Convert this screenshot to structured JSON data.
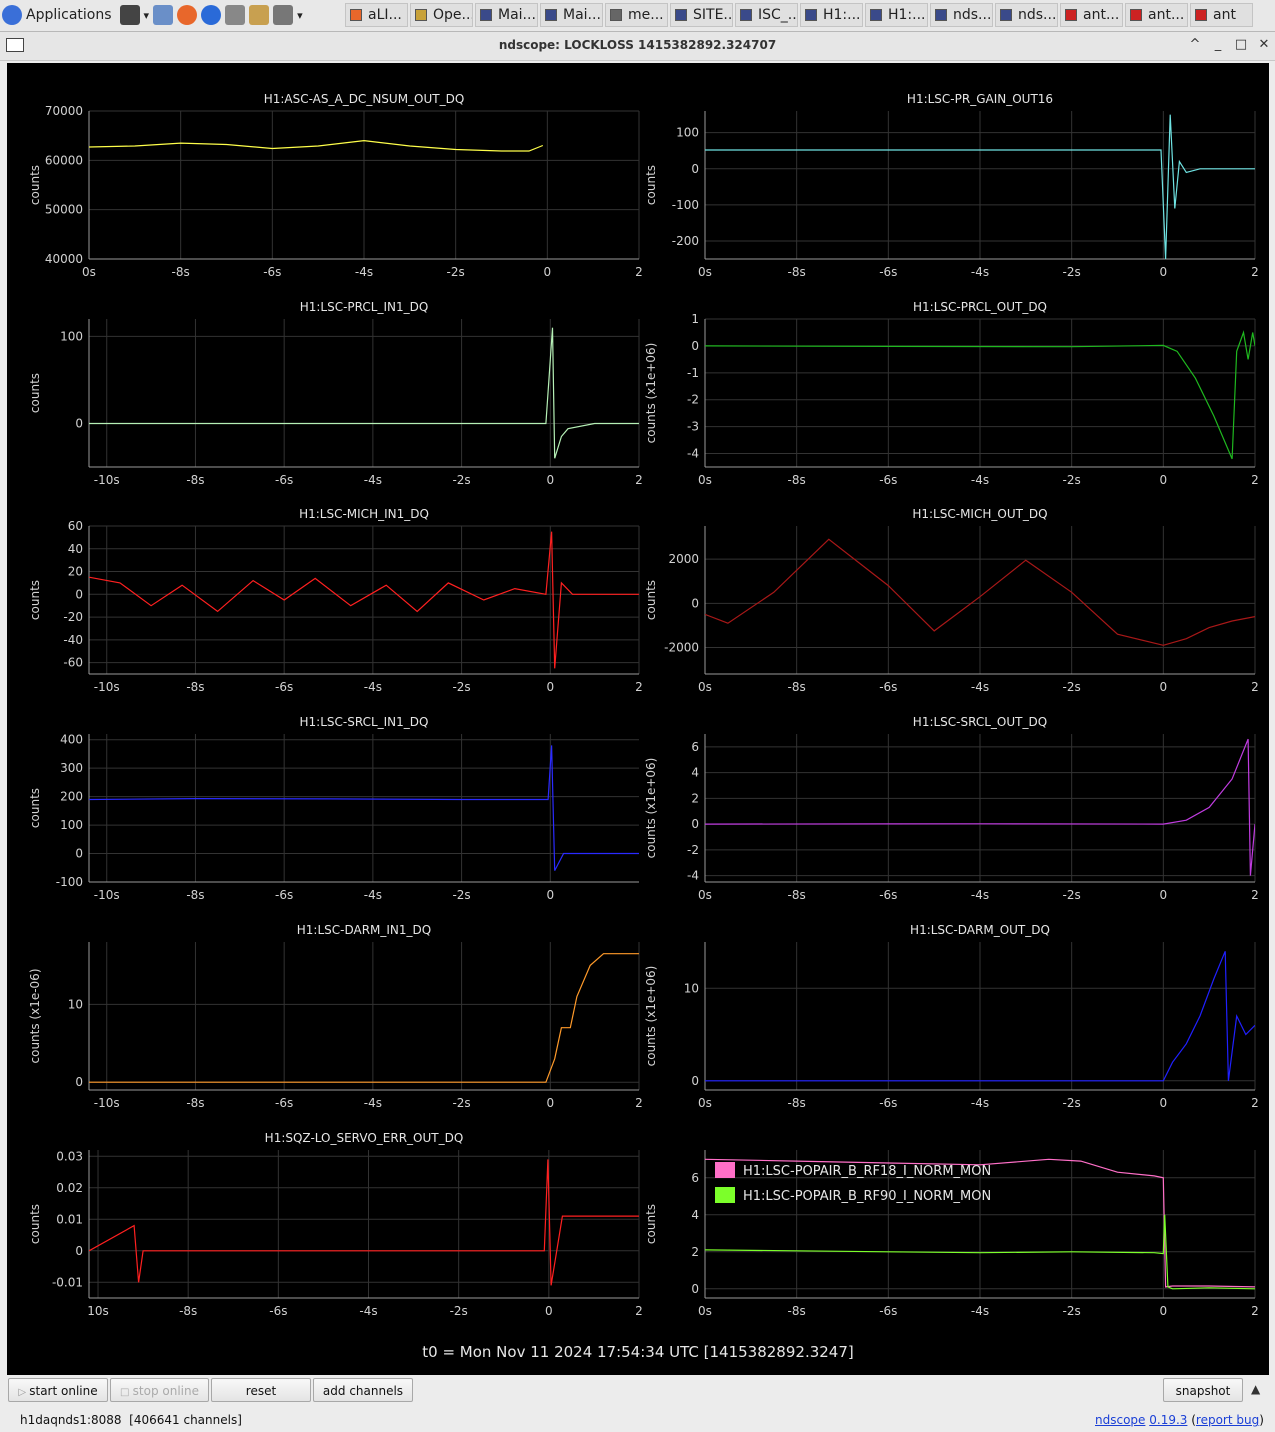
{
  "taskbar": {
    "applications_label": "Applications",
    "tasks": [
      {
        "label": "aLI...",
        "icon": "firefox-icon",
        "color": "#e8672b"
      },
      {
        "label": "Ope...",
        "icon": "notepad-icon",
        "color": "#c8a23a"
      },
      {
        "label": "Mai...",
        "icon": "window-icon",
        "color": "#3a4a8a"
      },
      {
        "label": "Mai...",
        "icon": "window-icon",
        "color": "#3a4a8a"
      },
      {
        "label": "me...",
        "icon": "window-icon",
        "color": "#666666"
      },
      {
        "label": "SITE...",
        "icon": "monitor-icon",
        "color": "#3a4a8a"
      },
      {
        "label": "ISC_...",
        "icon": "monitor-icon",
        "color": "#3a4a8a"
      },
      {
        "label": "H1:...",
        "icon": "monitor-icon",
        "color": "#3a4a8a"
      },
      {
        "label": "H1:...",
        "icon": "monitor-icon",
        "color": "#3a4a8a"
      },
      {
        "label": "nds...",
        "icon": "window-icon",
        "color": "#3a4a8a"
      },
      {
        "label": "nds...",
        "icon": "window-icon",
        "color": "#3a4a8a"
      },
      {
        "label": "ant...",
        "icon": "terminal-icon",
        "color": "#cc2222"
      },
      {
        "label": "ant...",
        "icon": "terminal-icon",
        "color": "#cc2222"
      },
      {
        "label": "ant",
        "icon": "terminal-icon",
        "color": "#cc2222"
      }
    ]
  },
  "window": {
    "title": "ndscope: LOCKLOSS 1415382892.324707",
    "controls": [
      "^",
      "_",
      "□",
      "✕"
    ]
  },
  "t0_label": "t0 = Mon Nov 11 2024 17:54:34 UTC [1415382892.3247]",
  "panels": [
    {
      "title": "H1:ASC-AS_A_DC_NSUM_OUT_DQ",
      "ylabel": "counts",
      "yticks": [
        "70000",
        "60000",
        "50000",
        "40000"
      ],
      "xticks": [
        "0s",
        "-8s",
        "-6s",
        "-4s",
        "-2s",
        "0",
        "2"
      ]
    },
    {
      "title": "H1:LSC-PR_GAIN_OUT16",
      "ylabel": "counts",
      "yticks": [
        "100",
        "0",
        "-100",
        "-200"
      ],
      "xticks": [
        "0s",
        "-8s",
        "-6s",
        "-4s",
        "-2s",
        "0",
        "2"
      ]
    },
    {
      "title": "H1:LSC-PRCL_IN1_DQ",
      "ylabel": "counts",
      "yticks": [
        "100",
        "0"
      ],
      "xticks": [
        "-10s",
        "-8s",
        "-6s",
        "-4s",
        "-2s",
        "0",
        "2"
      ]
    },
    {
      "title": "H1:LSC-PRCL_OUT_DQ",
      "ylabel": "counts (x1e+06)",
      "yticks": [
        "1",
        "0",
        "-1",
        "-2",
        "-3",
        "-4"
      ],
      "xticks": [
        "0s",
        "-8s",
        "-6s",
        "-4s",
        "-2s",
        "0",
        "2"
      ]
    },
    {
      "title": "H1:LSC-MICH_IN1_DQ",
      "ylabel": "counts",
      "yticks": [
        "60",
        "40",
        "20",
        "0",
        "-20",
        "-40",
        "-60"
      ],
      "xticks": [
        "-10s",
        "-8s",
        "-6s",
        "-4s",
        "-2s",
        "0",
        "2"
      ]
    },
    {
      "title": "H1:LSC-MICH_OUT_DQ",
      "ylabel": "counts",
      "yticks": [
        "2000",
        "0",
        "-2000"
      ],
      "xticks": [
        "0s",
        "-8s",
        "-6s",
        "-4s",
        "-2s",
        "0",
        "2"
      ]
    },
    {
      "title": "H1:LSC-SRCL_IN1_DQ",
      "ylabel": "counts",
      "yticks": [
        "400",
        "300",
        "200",
        "100",
        "0",
        "-100"
      ],
      "xticks": [
        "-10s",
        "-8s",
        "-6s",
        "-4s",
        "-2s",
        "0"
      ]
    },
    {
      "title": "H1:LSC-SRCL_OUT_DQ",
      "ylabel": "counts (x1e+06)",
      "yticks": [
        "6",
        "4",
        "2",
        "0",
        "-2",
        "-4"
      ],
      "xticks": [
        "0s",
        "-8s",
        "-6s",
        "-4s",
        "-2s",
        "0",
        "2"
      ]
    },
    {
      "title": "H1:LSC-DARM_IN1_DQ",
      "ylabel": "counts (x1e-06)",
      "yticks": [
        "10",
        "0"
      ],
      "xticks": [
        "-10s",
        "-8s",
        "-6s",
        "-4s",
        "-2s",
        "0",
        "2"
      ]
    },
    {
      "title": "H1:LSC-DARM_OUT_DQ",
      "ylabel": "counts (x1e+06)",
      "yticks": [
        "10",
        "0"
      ],
      "xticks": [
        "0s",
        "-8s",
        "-6s",
        "-4s",
        "-2s",
        "0",
        "2"
      ]
    },
    {
      "title": "H1:SQZ-LO_SERVO_ERR_OUT_DQ",
      "ylabel": "counts",
      "yticks": [
        "0.03",
        "0.02",
        "0.01",
        "0",
        "-0.01"
      ],
      "xticks": [
        "10s",
        "-8s",
        "-6s",
        "-4s",
        "-2s",
        "0",
        "2"
      ]
    },
    {
      "title": "",
      "ylabel": "counts",
      "yticks": [
        "6",
        "4",
        "2",
        "0"
      ],
      "xticks": [
        "0s",
        "-8s",
        "-6s",
        "-4s",
        "-2s",
        "0",
        "2"
      ],
      "legend": [
        "H1:LSC-POPAIR_B_RF18_I_NORM_MON",
        "H1:LSC-POPAIR_B_RF90_I_NORM_MON"
      ]
    }
  ],
  "chart_data": [
    {
      "type": "line",
      "title": "H1:ASC-AS_A_DC_NSUM_OUT_DQ",
      "ylabel": "counts",
      "xlim": [
        -10,
        2
      ],
      "ylim": [
        40000,
        70000
      ],
      "color": "#ffff4a",
      "series": [
        {
          "x": [
            -10,
            -9,
            -8,
            -7,
            -6,
            -5,
            -4,
            -3,
            -2,
            -1,
            -0.4,
            -0.1
          ],
          "y": [
            62700,
            62900,
            63500,
            63200,
            62400,
            62900,
            64000,
            62900,
            62200,
            61900,
            61900,
            63000
          ]
        }
      ]
    },
    {
      "type": "line",
      "title": "H1:LSC-PR_GAIN_OUT16",
      "ylabel": "counts",
      "xlim": [
        -10,
        2
      ],
      "ylim": [
        -250,
        160
      ],
      "color": "#6fe3e3",
      "series": [
        {
          "x": [
            -10,
            -2,
            -0.05,
            0.05,
            0.15,
            0.25,
            0.35,
            0.5,
            0.8,
            1.2,
            2
          ],
          "y": [
            52,
            52,
            52,
            -250,
            150,
            -110,
            20,
            -10,
            0,
            0,
            0
          ]
        }
      ]
    },
    {
      "type": "line",
      "title": "H1:LSC-PRCL_IN1_DQ",
      "ylabel": "counts",
      "xlim": [
        -10.4,
        2
      ],
      "ylim": [
        -50,
        120
      ],
      "color": "#b6f0b6",
      "series": [
        {
          "x": [
            -10.4,
            -1,
            -0.1,
            0.05,
            0.1,
            0.25,
            0.4,
            1,
            2
          ],
          "y": [
            0,
            0,
            0,
            110,
            -40,
            -15,
            -6,
            0,
            0
          ]
        }
      ]
    },
    {
      "type": "line",
      "title": "H1:LSC-PRCL_OUT_DQ",
      "ylabel": "counts (x1e+06)",
      "xlim": [
        -10,
        2
      ],
      "ylim": [
        -4.5,
        1
      ],
      "color": "#1fb81f",
      "series": [
        {
          "x": [
            -10,
            -6,
            -2,
            0,
            0.3,
            0.7,
            1.1,
            1.5,
            1.6,
            1.75,
            1.85,
            1.95,
            2
          ],
          "y": [
            0,
            -0.02,
            -0.03,
            0.02,
            -0.2,
            -1.2,
            -2.6,
            -4.2,
            -0.2,
            0.5,
            -0.5,
            0.5,
            0
          ]
        }
      ]
    },
    {
      "type": "line",
      "title": "H1:LSC-MICH_IN1_DQ",
      "ylabel": "counts",
      "xlim": [
        -10.4,
        2
      ],
      "ylim": [
        -70,
        60
      ],
      "color": "#ff2020",
      "series": [
        {
          "x": [
            -10.4,
            -9.7,
            -9,
            -8.3,
            -7.5,
            -6.7,
            -6,
            -5.3,
            -4.5,
            -3.7,
            -3,
            -2.3,
            -1.5,
            -0.8,
            -0.1,
            0.03,
            0.1,
            0.25,
            0.5,
            2
          ],
          "y": [
            15,
            10,
            -10,
            8,
            -15,
            12,
            -5,
            14,
            -10,
            8,
            -15,
            10,
            -5,
            5,
            0,
            55,
            -65,
            10,
            0,
            0
          ]
        }
      ]
    },
    {
      "type": "line",
      "title": "H1:LSC-MICH_OUT_DQ",
      "ylabel": "counts",
      "xlim": [
        -10,
        2
      ],
      "ylim": [
        -3200,
        3500
      ],
      "color": "#a81818",
      "series": [
        {
          "x": [
            -10,
            -9.5,
            -8.5,
            -7.3,
            -6,
            -5,
            -4,
            -3,
            -2,
            -1,
            0,
            0.5,
            1,
            1.5,
            2
          ],
          "y": [
            -500,
            -900,
            500,
            2900,
            800,
            -1250,
            300,
            1950,
            500,
            -1400,
            -1900,
            -1600,
            -1100,
            -800,
            -600
          ]
        }
      ]
    },
    {
      "type": "line",
      "title": "H1:LSC-SRCL_IN1_DQ",
      "ylabel": "counts",
      "xlim": [
        -10.4,
        2
      ],
      "ylim": [
        -100,
        420
      ],
      "color": "#2a2aff",
      "series": [
        {
          "x": [
            -10.4,
            -8,
            -5,
            -2,
            -0.05,
            0.03,
            0.1,
            0.3,
            2
          ],
          "y": [
            190,
            193,
            192,
            190,
            190,
            380,
            -60,
            0,
            0
          ]
        }
      ]
    },
    {
      "type": "line",
      "title": "H1:LSC-SRCL_OUT_DQ",
      "ylabel": "counts (x1e+06)",
      "xlim": [
        -10,
        2
      ],
      "ylim": [
        -4.5,
        7
      ],
      "color": "#c03ce0",
      "series": [
        {
          "x": [
            -10,
            -4,
            0,
            0.5,
            1,
            1.5,
            1.85,
            1.9,
            2
          ],
          "y": [
            0,
            0.02,
            0,
            0.3,
            1.3,
            3.5,
            6.6,
            -4,
            0
          ]
        }
      ]
    },
    {
      "type": "line",
      "title": "H1:LSC-DARM_IN1_DQ",
      "ylabel": "counts (x1e-06)",
      "xlim": [
        -10.4,
        2
      ],
      "ylim": [
        -1,
        18
      ],
      "color": "#ff9a2a",
      "series": [
        {
          "x": [
            -10.4,
            -1,
            -0.1,
            0.1,
            0.25,
            0.45,
            0.6,
            0.9,
            1.2,
            1.5,
            2
          ],
          "y": [
            0,
            0,
            0,
            3,
            7,
            7,
            11,
            15,
            16.5,
            16.5,
            16.5
          ]
        }
      ]
    },
    {
      "type": "line",
      "title": "H1:LSC-DARM_OUT_DQ",
      "ylabel": "counts (x1e+06)",
      "xlim": [
        -10,
        2
      ],
      "ylim": [
        -1,
        15
      ],
      "color": "#2020ff",
      "series": [
        {
          "x": [
            -10,
            -2,
            0,
            0.2,
            0.5,
            0.8,
            1.1,
            1.35,
            1.42,
            1.6,
            1.8,
            2
          ],
          "y": [
            0,
            0,
            0,
            2,
            4,
            7,
            11,
            14,
            0,
            7,
            5,
            6
          ]
        }
      ]
    },
    {
      "type": "line",
      "title": "H1:SQZ-LO_SERVO_ERR_OUT_DQ",
      "ylabel": "counts",
      "xlim": [
        -10.2,
        2
      ],
      "ylim": [
        -0.015,
        0.032
      ],
      "color": "#ff2020",
      "series": [
        {
          "x": [
            -10.2,
            -9.2,
            -9.1,
            -9.0,
            -5,
            -0.1,
            -0.02,
            0.05,
            0.3,
            0.6,
            2
          ],
          "y": [
            0,
            0.008,
            -0.01,
            0,
            0,
            0,
            0.029,
            -0.011,
            0.011,
            0.011,
            0.011
          ]
        }
      ]
    },
    {
      "type": "line",
      "title": "",
      "ylabel": "counts",
      "xlim": [
        -10,
        2
      ],
      "ylim": [
        -0.5,
        7.5
      ],
      "legend_position": "top-left",
      "series": [
        {
          "name": "H1:LSC-POPAIR_B_RF18_I_NORM_MON",
          "color": "#ff6fc8",
          "x": [
            -10,
            -8,
            -6,
            -4,
            -2.5,
            -1.8,
            -1,
            -0.2,
            0,
            0.05,
            0.2,
            1,
            2
          ],
          "y": [
            7,
            6.9,
            6.8,
            6.7,
            7.0,
            6.9,
            6.3,
            6.1,
            6.0,
            0.1,
            0.15,
            0.15,
            0.1
          ]
        },
        {
          "name": "H1:LSC-POPAIR_B_RF90_I_NORM_MON",
          "color": "#7cff2a",
          "x": [
            -10,
            -8,
            -6,
            -4,
            -2,
            -0.2,
            0,
            0.03,
            0.1,
            0.2,
            1,
            2
          ],
          "y": [
            2.1,
            2.05,
            2.0,
            1.95,
            2.0,
            1.95,
            1.9,
            4.0,
            0.1,
            0.0,
            0.05,
            0.0
          ]
        }
      ]
    }
  ],
  "buttons": {
    "start_online": "start online",
    "stop_online": "stop online",
    "reset": "reset",
    "add_channels": "add channels",
    "snapshot": "snapshot"
  },
  "status": {
    "server": "h1daqnds1:8088",
    "channels": "[406641 channels]",
    "app_name": "ndscope",
    "version": "0.19.3",
    "report_bug": "report bug"
  }
}
